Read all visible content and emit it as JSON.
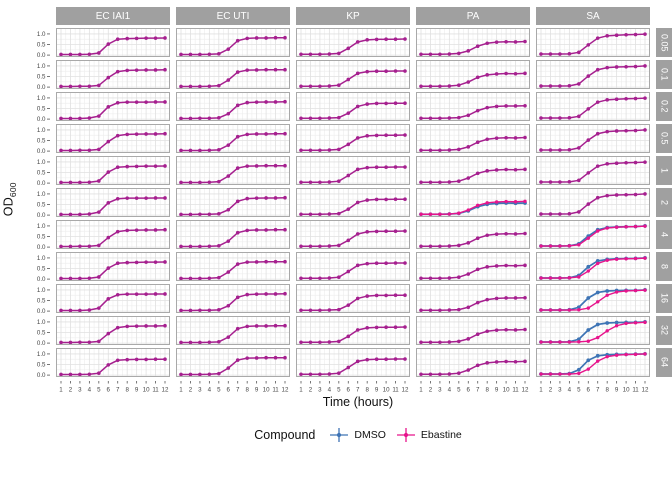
{
  "chart_data": {
    "type": "line",
    "title": "",
    "xlabel": "Time (hours)",
    "ylabel": "OD600",
    "ylabel_main": "OD",
    "ylabel_sub": "600",
    "x": [
      1,
      2,
      3,
      4,
      5,
      6,
      7,
      8,
      9,
      10,
      11,
      12
    ],
    "ylim": [
      0.0,
      1.0
    ],
    "yticks": [
      "1.0",
      "0.5",
      "0.0"
    ],
    "ytick_values": [
      1.0,
      0.5,
      0.0
    ],
    "grid": "on",
    "facet_columns": [
      "EC IAI1",
      "EC UTI",
      "KP",
      "PA",
      "SA"
    ],
    "facet_rows": [
      "0.05",
      "0.1",
      "0.2",
      "0.5",
      "1",
      "2",
      "4",
      "8",
      "16",
      "32",
      "64"
    ],
    "colors": {
      "dmso": "#3e74b5",
      "ebastine": "#e7148c",
      "overlap_blend": "#a6208f",
      "strip_bg": "#a0a0a0",
      "strip_text": "#ffffff",
      "panel_border": "#a9a9a9",
      "grid_major": "#e0e0e0",
      "grid_minor": "#efefef"
    },
    "legend": {
      "title": "Compound",
      "position": "bottom",
      "entries": [
        {
          "label": "DMSO",
          "color": "#3e74b5"
        },
        {
          "label": "Ebastine",
          "color": "#e7148c"
        }
      ]
    },
    "panels": {
      "EC IAI1": {
        "0.05": {
          "both": [
            0.03,
            0.03,
            0.03,
            0.04,
            0.1,
            0.52,
            0.75,
            0.78,
            0.79,
            0.8,
            0.8,
            0.81
          ]
        },
        "0.1": {
          "both": [
            0.03,
            0.03,
            0.04,
            0.04,
            0.08,
            0.45,
            0.73,
            0.79,
            0.8,
            0.81,
            0.81,
            0.82
          ]
        },
        "0.2": {
          "both": [
            0.03,
            0.03,
            0.03,
            0.05,
            0.14,
            0.58,
            0.77,
            0.8,
            0.8,
            0.8,
            0.81,
            0.81
          ]
        },
        "0.5": {
          "both": [
            0.03,
            0.03,
            0.04,
            0.04,
            0.08,
            0.45,
            0.73,
            0.79,
            0.8,
            0.81,
            0.81,
            0.82
          ]
        },
        "1": {
          "both": [
            0.03,
            0.03,
            0.03,
            0.04,
            0.1,
            0.52,
            0.75,
            0.78,
            0.79,
            0.8,
            0.8,
            0.81
          ]
        },
        "2": {
          "both": [
            0.03,
            0.03,
            0.03,
            0.05,
            0.14,
            0.58,
            0.77,
            0.8,
            0.8,
            0.8,
            0.81,
            0.81
          ]
        },
        "4": {
          "both": [
            0.03,
            0.03,
            0.04,
            0.04,
            0.08,
            0.45,
            0.73,
            0.79,
            0.8,
            0.81,
            0.81,
            0.82
          ]
        },
        "8": {
          "both": [
            0.03,
            0.03,
            0.03,
            0.04,
            0.1,
            0.52,
            0.75,
            0.78,
            0.79,
            0.8,
            0.8,
            0.81
          ]
        },
        "16": {
          "both": [
            0.03,
            0.03,
            0.03,
            0.05,
            0.14,
            0.58,
            0.77,
            0.8,
            0.8,
            0.8,
            0.81,
            0.81
          ]
        },
        "32": {
          "both": [
            0.03,
            0.03,
            0.04,
            0.04,
            0.08,
            0.45,
            0.73,
            0.79,
            0.8,
            0.81,
            0.81,
            0.82
          ]
        },
        "64": {
          "both": [
            0.03,
            0.03,
            0.03,
            0.04,
            0.09,
            0.48,
            0.7,
            0.73,
            0.74,
            0.74,
            0.75,
            0.75
          ]
        }
      },
      "EC UTI": {
        "0.05": {
          "both": [
            0.03,
            0.03,
            0.03,
            0.04,
            0.06,
            0.28,
            0.68,
            0.79,
            0.81,
            0.81,
            0.82,
            0.82
          ]
        },
        "0.1": {
          "both": [
            0.03,
            0.03,
            0.03,
            0.04,
            0.07,
            0.33,
            0.71,
            0.8,
            0.81,
            0.82,
            0.82,
            0.82
          ]
        },
        "0.2": {
          "both": [
            0.03,
            0.03,
            0.04,
            0.04,
            0.06,
            0.25,
            0.65,
            0.78,
            0.8,
            0.81,
            0.81,
            0.82
          ]
        },
        "0.5": {
          "both": [
            0.03,
            0.03,
            0.03,
            0.04,
            0.06,
            0.28,
            0.68,
            0.79,
            0.81,
            0.81,
            0.82,
            0.82
          ]
        },
        "1": {
          "both": [
            0.03,
            0.03,
            0.03,
            0.04,
            0.07,
            0.33,
            0.71,
            0.8,
            0.81,
            0.82,
            0.82,
            0.82
          ]
        },
        "2": {
          "both": [
            0.03,
            0.03,
            0.04,
            0.04,
            0.06,
            0.25,
            0.65,
            0.78,
            0.8,
            0.81,
            0.81,
            0.82
          ]
        },
        "4": {
          "both": [
            0.03,
            0.03,
            0.03,
            0.04,
            0.06,
            0.28,
            0.68,
            0.79,
            0.81,
            0.81,
            0.82,
            0.82
          ]
        },
        "8": {
          "both": [
            0.03,
            0.03,
            0.03,
            0.04,
            0.07,
            0.33,
            0.71,
            0.8,
            0.81,
            0.82,
            0.82,
            0.82
          ]
        },
        "16": {
          "both": [
            0.03,
            0.03,
            0.04,
            0.04,
            0.06,
            0.25,
            0.65,
            0.78,
            0.8,
            0.81,
            0.81,
            0.82
          ]
        },
        "32": {
          "both": [
            0.03,
            0.03,
            0.03,
            0.04,
            0.06,
            0.28,
            0.68,
            0.79,
            0.81,
            0.81,
            0.82,
            0.82
          ]
        },
        "64": {
          "both": [
            0.03,
            0.03,
            0.03,
            0.04,
            0.07,
            0.33,
            0.71,
            0.8,
            0.81,
            0.82,
            0.82,
            0.82
          ]
        }
      },
      "KP": {
        "0.05": {
          "both": [
            0.04,
            0.04,
            0.04,
            0.05,
            0.08,
            0.32,
            0.62,
            0.72,
            0.74,
            0.75,
            0.75,
            0.76
          ]
        },
        "0.1": {
          "both": [
            0.04,
            0.04,
            0.04,
            0.05,
            0.09,
            0.36,
            0.65,
            0.73,
            0.75,
            0.75,
            0.76,
            0.76
          ]
        },
        "0.2": {
          "both": [
            0.04,
            0.04,
            0.04,
            0.05,
            0.07,
            0.28,
            0.6,
            0.71,
            0.74,
            0.74,
            0.75,
            0.75
          ]
        },
        "0.5": {
          "both": [
            0.04,
            0.04,
            0.04,
            0.05,
            0.08,
            0.32,
            0.62,
            0.72,
            0.74,
            0.75,
            0.75,
            0.76
          ]
        },
        "1": {
          "both": [
            0.04,
            0.04,
            0.04,
            0.05,
            0.09,
            0.36,
            0.65,
            0.73,
            0.75,
            0.75,
            0.76,
            0.76
          ]
        },
        "2": {
          "both": [
            0.04,
            0.04,
            0.04,
            0.05,
            0.07,
            0.28,
            0.6,
            0.71,
            0.74,
            0.74,
            0.75,
            0.75
          ]
        },
        "4": {
          "both": [
            0.04,
            0.04,
            0.04,
            0.05,
            0.08,
            0.32,
            0.62,
            0.72,
            0.74,
            0.75,
            0.75,
            0.76
          ]
        },
        "8": {
          "both": [
            0.04,
            0.04,
            0.04,
            0.05,
            0.09,
            0.36,
            0.65,
            0.73,
            0.75,
            0.75,
            0.76,
            0.76
          ]
        },
        "16": {
          "both": [
            0.04,
            0.04,
            0.04,
            0.05,
            0.07,
            0.28,
            0.6,
            0.71,
            0.74,
            0.74,
            0.75,
            0.75
          ]
        },
        "32": {
          "both": [
            0.04,
            0.04,
            0.04,
            0.05,
            0.08,
            0.32,
            0.62,
            0.72,
            0.74,
            0.75,
            0.75,
            0.76
          ]
        },
        "64": {
          "both": [
            0.04,
            0.04,
            0.04,
            0.05,
            0.09,
            0.36,
            0.65,
            0.73,
            0.75,
            0.75,
            0.76,
            0.76
          ]
        }
      },
      "PA": {
        "0.05": {
          "both": [
            0.04,
            0.04,
            0.04,
            0.05,
            0.08,
            0.2,
            0.42,
            0.56,
            0.61,
            0.63,
            0.62,
            0.64
          ]
        },
        "0.1": {
          "both": [
            0.04,
            0.04,
            0.04,
            0.05,
            0.09,
            0.24,
            0.46,
            0.58,
            0.62,
            0.64,
            0.63,
            0.65
          ]
        },
        "0.2": {
          "both": [
            0.04,
            0.04,
            0.04,
            0.05,
            0.07,
            0.18,
            0.4,
            0.54,
            0.6,
            0.62,
            0.62,
            0.63
          ]
        },
        "0.5": {
          "both": [
            0.04,
            0.04,
            0.04,
            0.05,
            0.08,
            0.2,
            0.42,
            0.56,
            0.61,
            0.63,
            0.62,
            0.64
          ]
        },
        "1": {
          "both": [
            0.04,
            0.04,
            0.04,
            0.05,
            0.09,
            0.24,
            0.46,
            0.58,
            0.62,
            0.64,
            0.63,
            0.65
          ]
        },
        "2": {
          "DMSO": [
            0.04,
            0.04,
            0.04,
            0.05,
            0.08,
            0.2,
            0.4,
            0.51,
            0.55,
            0.57,
            0.56,
            0.57
          ],
          "Ebastine": [
            0.04,
            0.04,
            0.04,
            0.05,
            0.09,
            0.24,
            0.46,
            0.58,
            0.62,
            0.64,
            0.63,
            0.65
          ]
        },
        "4": {
          "both": [
            0.04,
            0.04,
            0.04,
            0.05,
            0.08,
            0.2,
            0.42,
            0.56,
            0.61,
            0.63,
            0.62,
            0.64
          ]
        },
        "8": {
          "both": [
            0.04,
            0.04,
            0.04,
            0.05,
            0.09,
            0.24,
            0.46,
            0.58,
            0.62,
            0.64,
            0.63,
            0.65
          ]
        },
        "16": {
          "both": [
            0.04,
            0.04,
            0.04,
            0.05,
            0.07,
            0.18,
            0.4,
            0.54,
            0.6,
            0.62,
            0.62,
            0.63
          ]
        },
        "32": {
          "both": [
            0.04,
            0.04,
            0.04,
            0.05,
            0.08,
            0.2,
            0.42,
            0.56,
            0.61,
            0.63,
            0.62,
            0.64
          ]
        },
        "64": {
          "both": [
            0.04,
            0.04,
            0.04,
            0.05,
            0.09,
            0.24,
            0.46,
            0.58,
            0.62,
            0.64,
            0.63,
            0.65
          ]
        }
      },
      "SA": {
        "0.05": {
          "both": [
            0.05,
            0.05,
            0.05,
            0.06,
            0.13,
            0.48,
            0.8,
            0.91,
            0.94,
            0.96,
            0.97,
            0.99
          ]
        },
        "0.1": {
          "both": [
            0.05,
            0.05,
            0.05,
            0.06,
            0.15,
            0.52,
            0.82,
            0.92,
            0.95,
            0.96,
            0.97,
            1.0
          ]
        },
        "0.2": {
          "both": [
            0.05,
            0.05,
            0.05,
            0.06,
            0.13,
            0.48,
            0.8,
            0.91,
            0.94,
            0.96,
            0.97,
            0.99
          ]
        },
        "0.5": {
          "both": [
            0.05,
            0.05,
            0.05,
            0.06,
            0.15,
            0.52,
            0.82,
            0.92,
            0.95,
            0.96,
            0.97,
            1.0
          ]
        },
        "1": {
          "both": [
            0.05,
            0.05,
            0.05,
            0.06,
            0.13,
            0.48,
            0.8,
            0.91,
            0.94,
            0.96,
            0.97,
            0.99
          ]
        },
        "2": {
          "both": [
            0.05,
            0.05,
            0.05,
            0.06,
            0.15,
            0.52,
            0.82,
            0.92,
            0.95,
            0.96,
            0.97,
            1.0
          ]
        },
        "4": {
          "DMSO": [
            0.05,
            0.05,
            0.05,
            0.06,
            0.15,
            0.52,
            0.82,
            0.92,
            0.95,
            0.96,
            0.97,
            1.0
          ],
          "Ebastine": [
            0.05,
            0.05,
            0.05,
            0.06,
            0.11,
            0.42,
            0.76,
            0.9,
            0.94,
            0.96,
            0.97,
            0.99
          ]
        },
        "8": {
          "DMSO": [
            0.05,
            0.05,
            0.05,
            0.06,
            0.17,
            0.58,
            0.86,
            0.93,
            0.96,
            0.97,
            0.98,
            1.0
          ],
          "Ebastine": [
            0.05,
            0.05,
            0.05,
            0.06,
            0.1,
            0.38,
            0.74,
            0.89,
            0.94,
            0.96,
            0.97,
            0.99
          ]
        },
        "16": {
          "DMSO": [
            0.05,
            0.05,
            0.05,
            0.06,
            0.18,
            0.62,
            0.88,
            0.95,
            0.97,
            0.98,
            0.98,
            1.0
          ],
          "Ebastine": [
            0.05,
            0.05,
            0.05,
            0.05,
            0.06,
            0.14,
            0.44,
            0.75,
            0.9,
            0.95,
            0.97,
            0.99
          ]
        },
        "32": {
          "DMSO": [
            0.05,
            0.05,
            0.05,
            0.06,
            0.18,
            0.62,
            0.88,
            0.95,
            0.97,
            0.98,
            0.98,
            1.0
          ],
          "Ebastine": [
            0.05,
            0.05,
            0.05,
            0.05,
            0.06,
            0.09,
            0.26,
            0.58,
            0.82,
            0.93,
            0.96,
            0.98
          ]
        },
        "64": {
          "DMSO": [
            0.05,
            0.05,
            0.05,
            0.07,
            0.25,
            0.7,
            0.91,
            0.96,
            0.98,
            0.98,
            0.99,
            1.0
          ],
          "Ebastine": [
            0.05,
            0.05,
            0.05,
            0.05,
            0.08,
            0.28,
            0.66,
            0.87,
            0.94,
            0.97,
            0.98,
            1.0
          ]
        }
      }
    }
  }
}
